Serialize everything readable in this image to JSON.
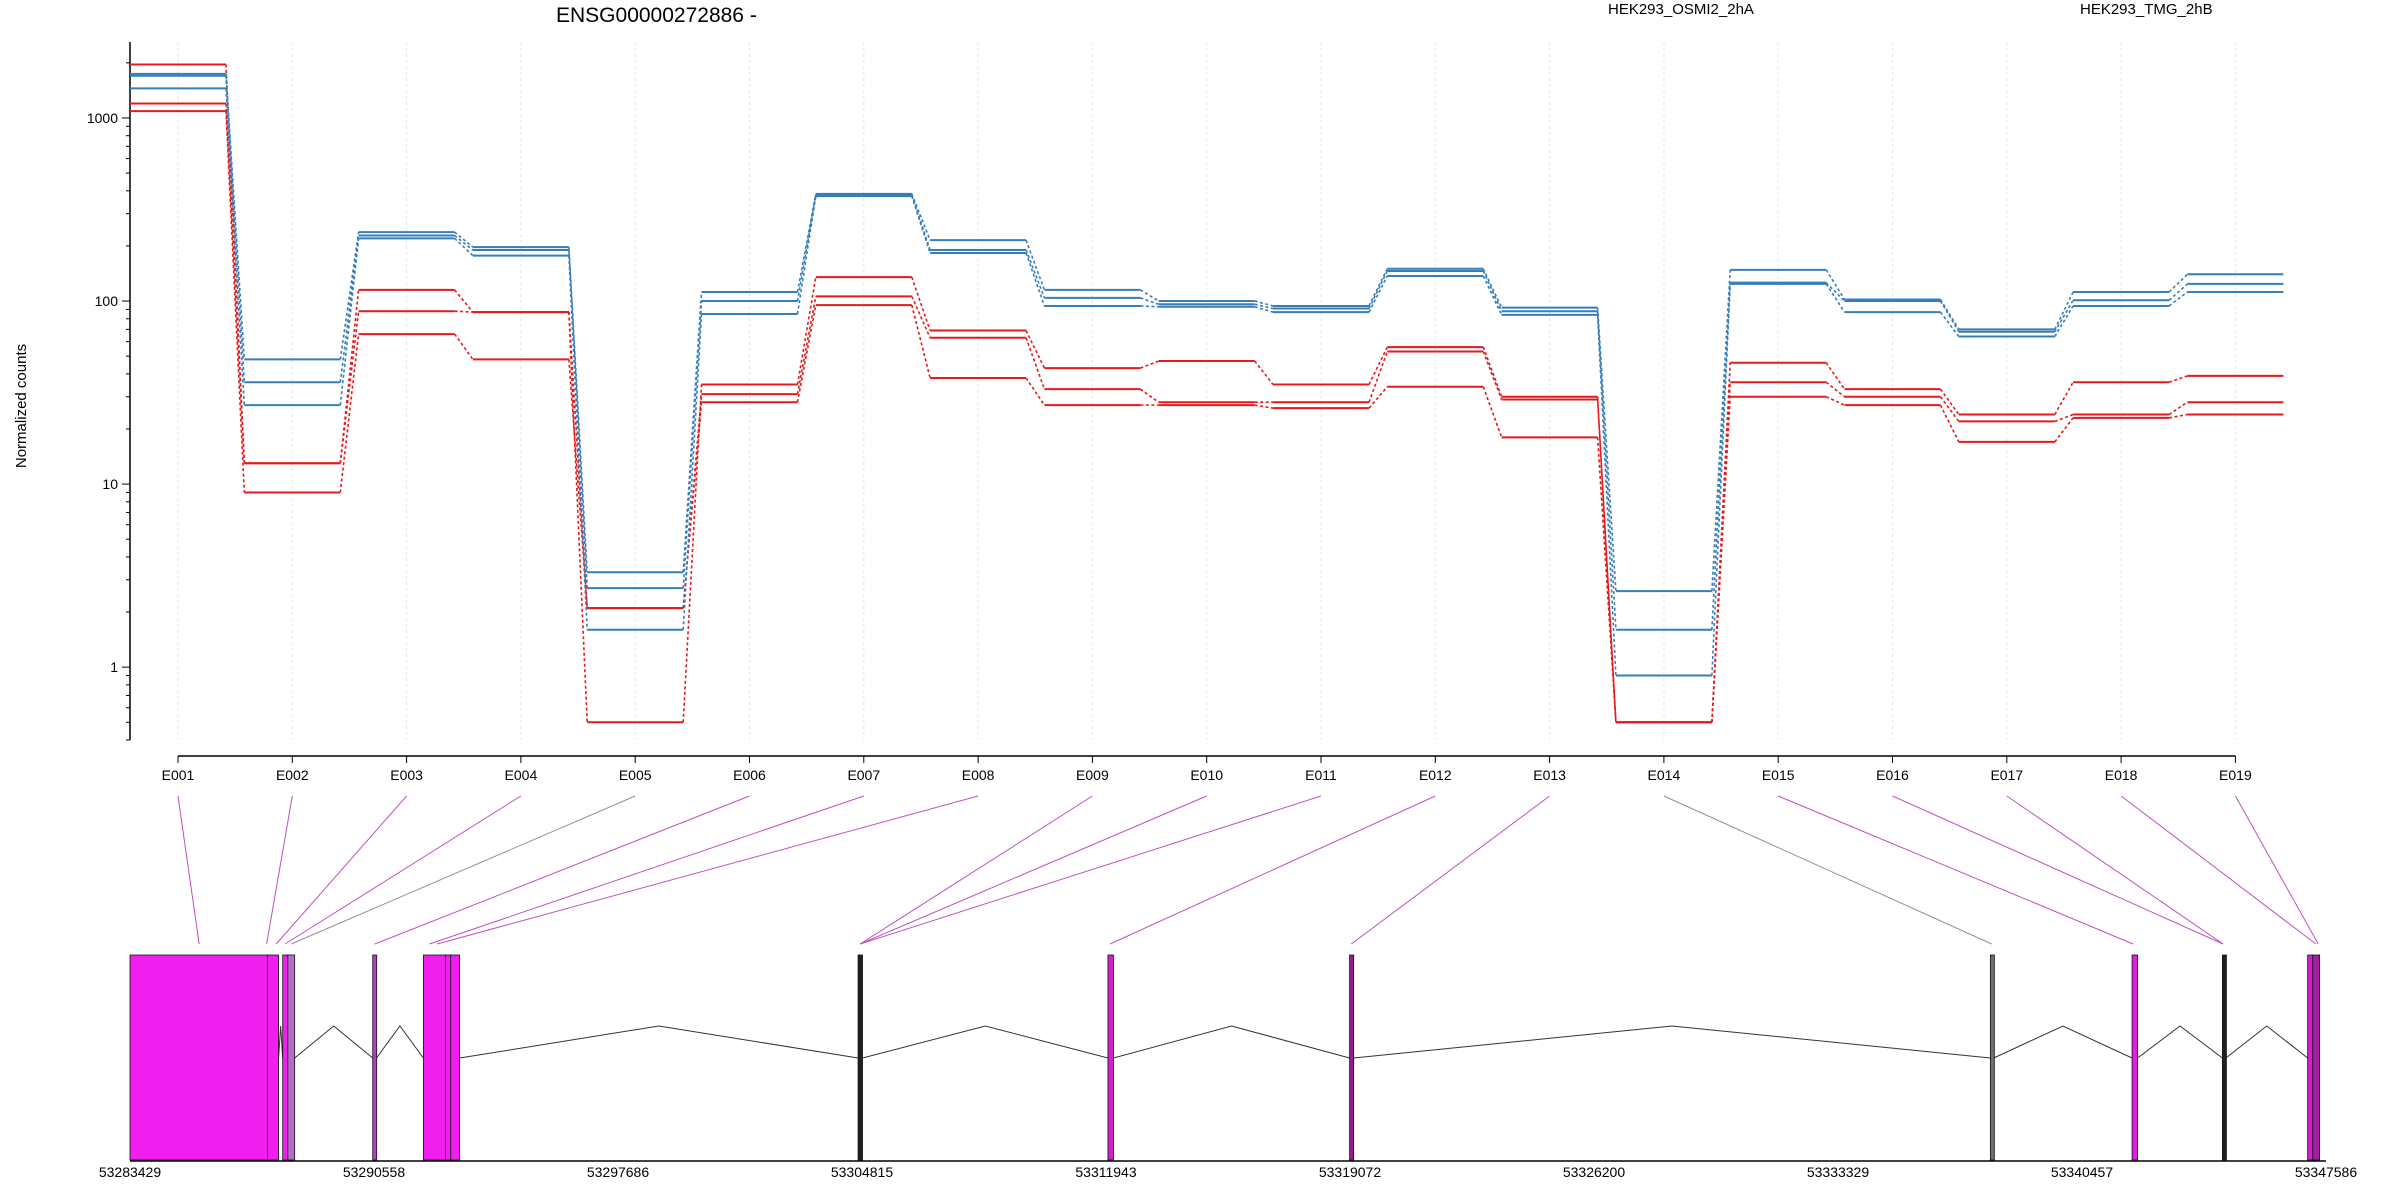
{
  "chart_data": {
    "type": "line",
    "title": "ENSG00000272886 -",
    "ylabel": "Normalized counts",
    "yscale": "log",
    "ylim": [
      0.4,
      2600
    ],
    "yticks": [
      1,
      10,
      100,
      1000
    ],
    "ytick_labels": [
      "1",
      "10",
      "100",
      "1000"
    ],
    "categories": [
      "E001",
      "E002",
      "E003",
      "E004",
      "E005",
      "E006",
      "E007",
      "E008",
      "E009",
      "E010",
      "E011",
      "E012",
      "E013",
      "E014",
      "E015",
      "E016",
      "E017",
      "E018",
      "E019"
    ],
    "legend": [
      {
        "label": "HEK293_OSMI2_2hA",
        "color": "#e41a1c"
      },
      {
        "label": "HEK293_TMG_2hB",
        "color": "#377eb8"
      }
    ],
    "series": [
      {
        "group": "HEK293_OSMI2_2hA",
        "color": "#e41a1c",
        "values": [
          1960,
          13,
          115,
          87,
          0.5,
          35,
          135,
          69,
          43,
          47,
          35,
          56,
          30,
          0.5,
          46,
          33,
          24,
          36,
          39
        ]
      },
      {
        "group": "HEK293_OSMI2_2hA",
        "color": "#e41a1c",
        "values": [
          1200,
          13,
          88,
          87,
          2.1,
          31,
          106,
          63,
          33,
          28,
          28,
          53,
          29,
          0.5,
          36,
          30,
          22,
          24,
          28
        ]
      },
      {
        "group": "HEK293_OSMI2_2hA",
        "color": "#e41a1c",
        "values": [
          1090,
          9,
          66,
          48,
          2.1,
          28,
          95,
          38,
          27,
          27,
          26,
          34,
          18,
          0.5,
          30,
          27,
          17,
          23,
          24
        ]
      },
      {
        "group": "HEK293_TMG_2hB",
        "color": "#377eb8",
        "values": [
          1740,
          48,
          238,
          197,
          3.3,
          112,
          385,
          215,
          115,
          100,
          94,
          150,
          92,
          2.6,
          148,
          102,
          70,
          112,
          140
        ]
      },
      {
        "group": "HEK293_TMG_2hB",
        "color": "#377eb8",
        "values": [
          1700,
          36,
          228,
          190,
          2.7,
          100,
          380,
          190,
          104,
          96,
          91,
          146,
          88,
          1.6,
          126,
          100,
          68,
          101,
          124
        ]
      },
      {
        "group": "HEK293_TMG_2hB",
        "color": "#377eb8",
        "values": [
          1450,
          27,
          220,
          177,
          1.6,
          85,
          374,
          183,
          94,
          93,
          87,
          137,
          84,
          0.9,
          124,
          87,
          64,
          94,
          112
        ]
      }
    ],
    "gene_model": {
      "strand": "-",
      "axis_ticks": [
        "53283429",
        "53290558",
        "53297686",
        "53304815",
        "53311943",
        "53319072",
        "53326200",
        "53333329",
        "53340457",
        "53347586"
      ],
      "region_start": 53283429,
      "region_end": 53347586,
      "exons": [
        {
          "start": 53283429,
          "end": 53287450,
          "color": "#f01ff0",
          "bin": "E001"
        },
        {
          "start": 53287450,
          "end": 53287770,
          "color": "#f01ff0",
          "bin": "E002"
        },
        {
          "start": 53287890,
          "end": 53288040,
          "color": "#f01ff0",
          "bin": "E003"
        },
        {
          "start": 53288040,
          "end": 53288240,
          "color": "#b070c8",
          "bin": "E004"
        },
        {
          "start": 53290520,
          "end": 53290630,
          "color": "#b040c0",
          "bin": "E005"
        },
        {
          "start": 53292000,
          "end": 53292650,
          "color": "#f01ff0",
          "bin": "E006"
        },
        {
          "start": 53292650,
          "end": 53292800,
          "color": "#f01ff0",
          "bin": "E007"
        },
        {
          "start": 53292800,
          "end": 53293060,
          "color": "#f01ff0",
          "bin": "E008"
        },
        {
          "start": 53304700,
          "end": 53304830,
          "color": "#202020",
          "bin": "E009"
        },
        {
          "start": 53312000,
          "end": 53312160,
          "color": "#d020d0",
          "bin": "E012"
        },
        {
          "start": 53319060,
          "end": 53319180,
          "color": "#902090",
          "bin": "E013"
        },
        {
          "start": 53337780,
          "end": 53337880,
          "color": "#707070",
          "bin": "E014"
        },
        {
          "start": 53341920,
          "end": 53342080,
          "color": "#e020e0",
          "bin": "E015"
        },
        {
          "start": 53344560,
          "end": 53344660,
          "color": "#202020",
          "bin": "E016"
        },
        {
          "start": 53347050,
          "end": 53347200,
          "color": "#d020d0",
          "bin": "E018"
        },
        {
          "start": 53347200,
          "end": 53347400,
          "color": "#a020a0",
          "bin": "E019"
        }
      ],
      "introns": [
        {
          "from": 53287770,
          "to": 53287890
        },
        {
          "from": 53288240,
          "to": 53290520
        },
        {
          "from": 53290630,
          "to": 53292000
        },
        {
          "from": 53293060,
          "to": 53304700
        },
        {
          "from": 53304830,
          "to": 53312000
        },
        {
          "from": 53312160,
          "to": 53319060
        },
        {
          "from": 53319180,
          "to": 53337780
        },
        {
          "from": 53337880,
          "to": 53341920
        },
        {
          "from": 53342080,
          "to": 53344560
        },
        {
          "from": 53344660,
          "to": 53347050
        }
      ],
      "bin_links": [
        {
          "bin": "E001",
          "coord": 53285450,
          "color": "#c050c0"
        },
        {
          "bin": "E002",
          "coord": 53287420,
          "color": "#c050c0"
        },
        {
          "bin": "E003",
          "coord": 53287700,
          "color": "#c050c0"
        },
        {
          "bin": "E004",
          "coord": 53287960,
          "color": "#c050c0"
        },
        {
          "bin": "E005",
          "coord": 53288140,
          "color": "#9090a0"
        },
        {
          "bin": "E006",
          "coord": 53290580,
          "color": "#c050c0"
        },
        {
          "bin": "E007",
          "coord": 53292180,
          "color": "#c050c0"
        },
        {
          "bin": "E008",
          "coord": 53292400,
          "color": "#c050c0"
        },
        {
          "bin": "E009",
          "coord": 53304760,
          "color": "#c050c0"
        },
        {
          "bin": "E010",
          "coord": 53304760,
          "color": "#c050c0"
        },
        {
          "bin": "E011",
          "coord": 53304760,
          "color": "#c050c0"
        },
        {
          "bin": "E012",
          "coord": 53312060,
          "color": "#c050c0"
        },
        {
          "bin": "E013",
          "coord": 53319110,
          "color": "#c050c0"
        },
        {
          "bin": "E014",
          "coord": 53337820,
          "color": "#9090a0"
        },
        {
          "bin": "E015",
          "coord": 53341950,
          "color": "#c050c0"
        },
        {
          "bin": "E016",
          "coord": 53344580,
          "color": "#c050c0"
        },
        {
          "bin": "E017",
          "coord": 53344580,
          "color": "#c050c0"
        },
        {
          "bin": "E018",
          "coord": 53347290,
          "color": "#c050c0"
        },
        {
          "bin": "E019",
          "coord": 53347360,
          "color": "#c050c0"
        }
      ]
    }
  }
}
